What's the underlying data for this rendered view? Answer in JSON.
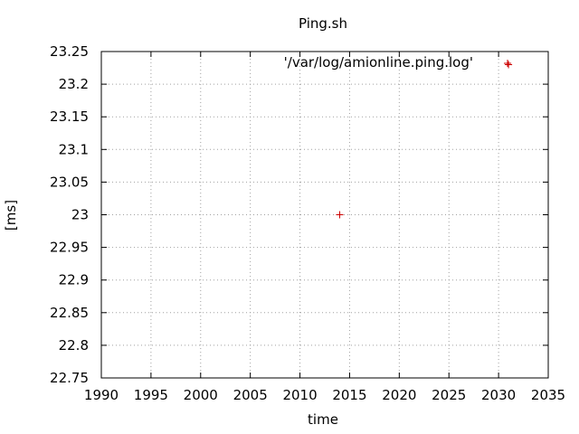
{
  "chart_data": {
    "type": "scatter",
    "title": "Ping.sh",
    "xlabel": "time",
    "ylabel": "[ms]",
    "xlim": [
      1990,
      2035
    ],
    "ylim": [
      22.75,
      23.25
    ],
    "x_ticks": [
      "1990",
      "1995",
      "2000",
      "2005",
      "2010",
      "2015",
      "2020",
      "2025",
      "2030",
      "2035"
    ],
    "y_ticks": [
      "22.75",
      "22.8",
      "22.85",
      "22.9",
      "22.95",
      "23",
      "23.05",
      "23.1",
      "23.15",
      "23.2",
      "23.25"
    ],
    "grid": true,
    "legend_position": "top-right",
    "series": [
      {
        "name": "'/var/log/amionline.ping.log'",
        "color": "#cc0000",
        "marker": "plus",
        "points": [
          {
            "x": 2014,
            "y": 23.0
          },
          {
            "x": 2031,
            "y": 23.23
          }
        ]
      }
    ]
  }
}
